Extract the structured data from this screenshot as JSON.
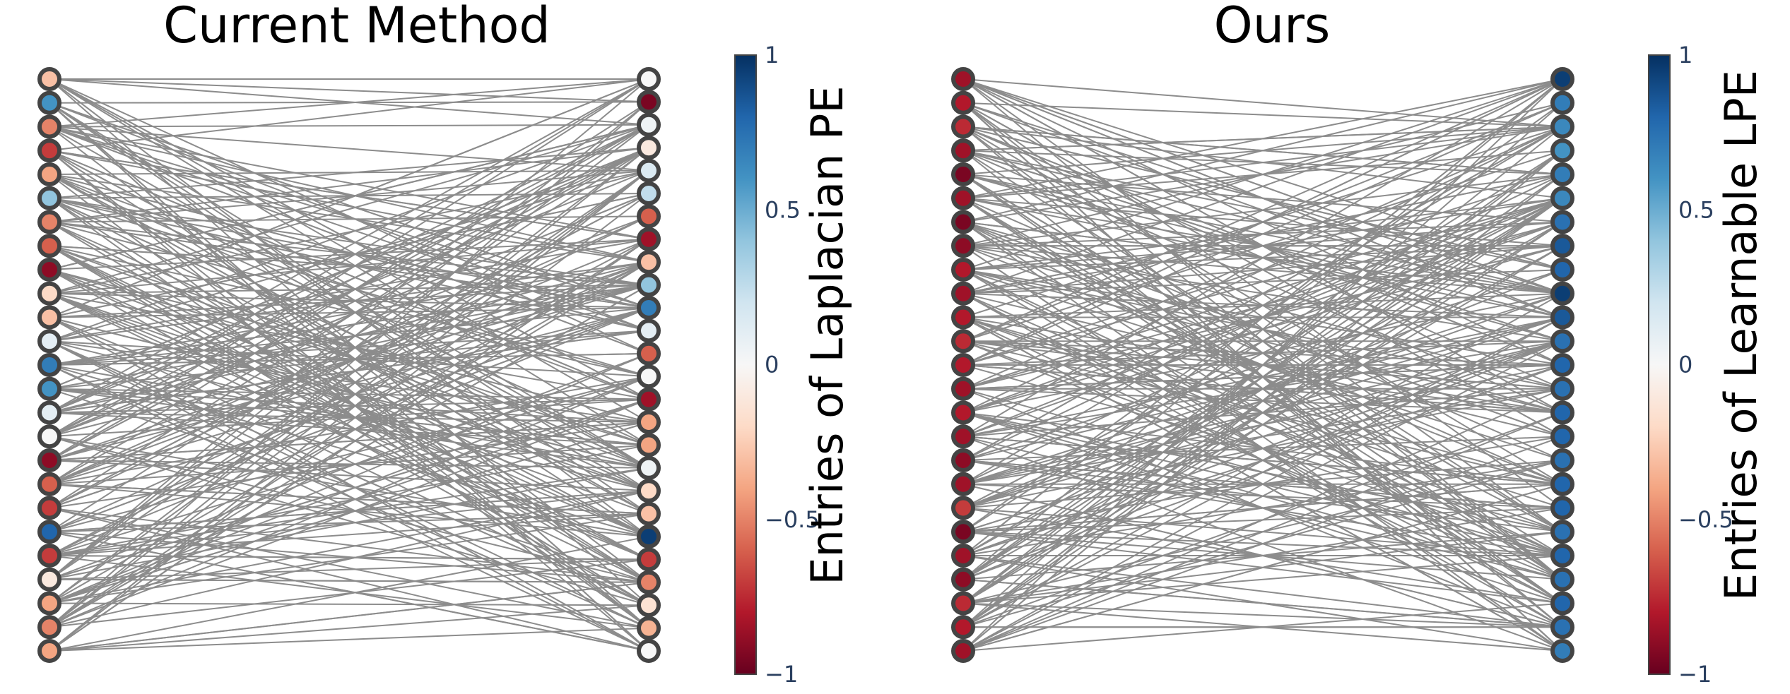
{
  "colorscale": {
    "name": "RdBu",
    "stops": [
      "#67001f",
      "#b2182b",
      "#d6604d",
      "#f4a582",
      "#fddbc7",
      "#f7f7f7",
      "#d1e5f0",
      "#92c5de",
      "#4393c3",
      "#2166ac",
      "#053061"
    ],
    "range": [
      -1,
      1
    ]
  },
  "edge_color": "#8c8c8c",
  "node_outline_color": "#444444",
  "panels": [
    {
      "title": "Current Method",
      "colorbar_title": "Entries of Laplacian PE",
      "colorbar_ticks": [
        {
          "value": 1,
          "label": "1"
        },
        {
          "value": 0.5,
          "label": "0.5"
        },
        {
          "value": 0,
          "label": "0"
        },
        {
          "value": -0.5,
          "label": "−0.5"
        },
        {
          "value": -1,
          "label": "−1"
        }
      ],
      "left_nodes": [
        -0.3,
        0.6,
        -0.5,
        -0.7,
        -0.4,
        0.4,
        -0.5,
        -0.6,
        -0.9,
        -0.2,
        -0.3,
        0.1,
        0.7,
        0.6,
        0.1,
        0.0,
        -0.9,
        -0.6,
        -0.7,
        0.8,
        -0.7,
        -0.1,
        -0.4,
        -0.5,
        -0.4
      ],
      "right_nodes": [
        0.0,
        -0.95,
        0.05,
        -0.1,
        0.15,
        0.25,
        -0.6,
        -0.85,
        -0.3,
        0.4,
        0.7,
        0.1,
        -0.6,
        0.0,
        -0.85,
        -0.4,
        -0.4,
        0.05,
        -0.2,
        -0.3,
        0.95,
        -0.7,
        -0.5,
        -0.15,
        -0.35,
        0.0
      ],
      "edges_per_node": 11
    },
    {
      "title": "Ours",
      "colorbar_title": "Entries of Learnable LPE",
      "colorbar_ticks": [
        {
          "value": 1,
          "label": "1"
        },
        {
          "value": 0.5,
          "label": "0.5"
        },
        {
          "value": 0,
          "label": "0"
        },
        {
          "value": -0.5,
          "label": "−0.5"
        },
        {
          "value": -1,
          "label": "−1"
        }
      ],
      "left_nodes": [
        -0.85,
        -0.8,
        -0.75,
        -0.85,
        -0.95,
        -0.85,
        -0.95,
        -0.9,
        -0.8,
        -0.85,
        -0.8,
        -0.75,
        -0.8,
        -0.85,
        -0.8,
        -0.85,
        -0.9,
        -0.85,
        -0.7,
        -0.95,
        -0.85,
        -0.9,
        -0.75,
        -0.8,
        -0.85
      ],
      "right_nodes": [
        0.95,
        0.7,
        0.65,
        0.6,
        0.7,
        0.65,
        0.75,
        0.85,
        0.8,
        0.95,
        0.85,
        0.75,
        0.8,
        0.75,
        0.8,
        0.8,
        0.75,
        0.8,
        0.8,
        0.75,
        0.8,
        0.75,
        0.8,
        0.75,
        0.7
      ],
      "edges_per_node": 11
    }
  ]
}
